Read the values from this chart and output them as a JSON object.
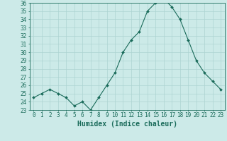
{
  "xlabel": "Humidex (Indice chaleur)",
  "x": [
    0,
    1,
    2,
    3,
    4,
    5,
    6,
    7,
    8,
    9,
    10,
    11,
    12,
    13,
    14,
    15,
    16,
    17,
    18,
    19,
    20,
    21,
    22,
    23
  ],
  "y": [
    24.5,
    25.0,
    25.5,
    25.0,
    24.5,
    23.5,
    24.0,
    23.0,
    24.5,
    26.0,
    27.5,
    30.0,
    31.5,
    32.5,
    35.0,
    36.0,
    36.5,
    35.5,
    34.0,
    31.5,
    29.0,
    27.5,
    26.5,
    25.5
  ],
  "ylim": [
    23,
    36
  ],
  "yticks": [
    23,
    24,
    25,
    26,
    27,
    28,
    29,
    30,
    31,
    32,
    33,
    34,
    35,
    36
  ],
  "xticks": [
    0,
    1,
    2,
    3,
    4,
    5,
    6,
    7,
    8,
    9,
    10,
    11,
    12,
    13,
    14,
    15,
    16,
    17,
    18,
    19,
    20,
    21,
    22,
    23
  ],
  "line_color": "#1a6b5a",
  "marker_color": "#1a6b5a",
  "bg_color": "#cceae8",
  "grid_color": "#add4d2",
  "axis_color": "#1a6b5a",
  "tick_label_fontsize": 5.5,
  "xlabel_fontsize": 7.0
}
